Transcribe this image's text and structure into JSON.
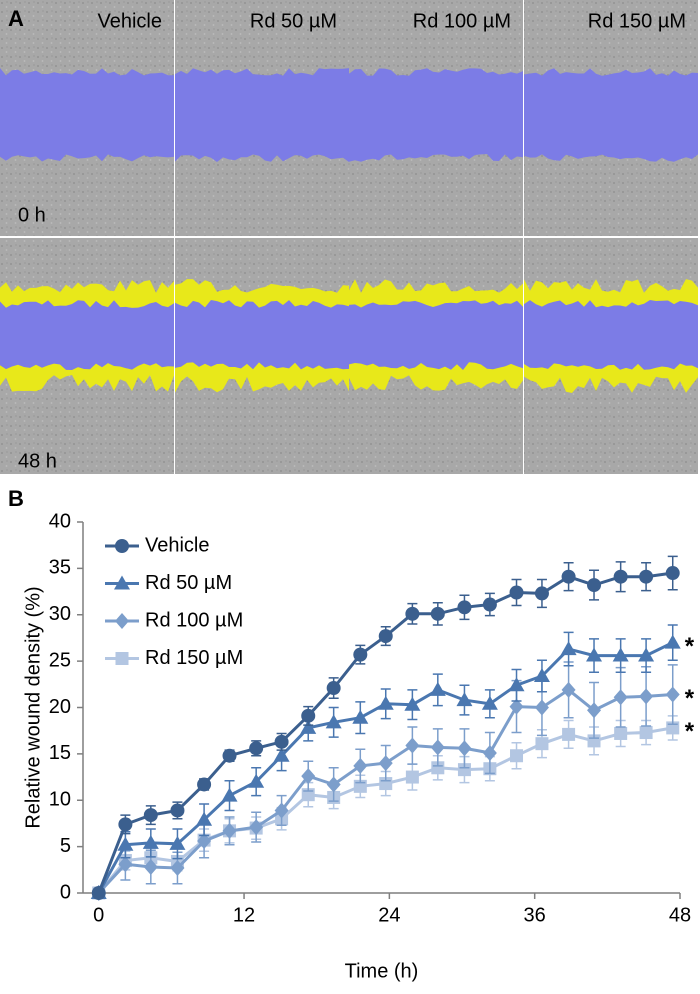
{
  "panel_a": {
    "label": "A",
    "columns": [
      "Vehicle",
      "Rd 50 µM",
      "Rd 100 µM",
      "Rd 150 µM"
    ],
    "rows": [
      "0 h",
      "48 h"
    ]
  },
  "panel_b_label": "B",
  "chart_data": {
    "type": "line",
    "xlabel": "Time (h)",
    "ylabel": "Relative wound density (%)",
    "x": [
      0,
      2.2,
      4.3,
      6.5,
      8.7,
      10.8,
      13,
      15.1,
      17.3,
      19.4,
      21.6,
      23.7,
      25.9,
      28,
      30.2,
      32.3,
      34.5,
      36.6,
      38.8,
      40.9,
      43.1,
      45.2,
      47.4
    ],
    "xlim": [
      -1.3,
      48
    ],
    "xticks": [
      0,
      12,
      24,
      36,
      48
    ],
    "ylim": [
      0,
      40
    ],
    "yticks": [
      0,
      5,
      10,
      15,
      20,
      25,
      30,
      35,
      40
    ],
    "legend": "upper left",
    "series": [
      {
        "name": "Vehicle",
        "color": "#3b5f8e",
        "marker": "circle",
        "values": [
          0,
          7.4,
          8.4,
          8.9,
          11.7,
          14.8,
          15.6,
          16.3,
          19.1,
          22.1,
          25.7,
          27.7,
          30.1,
          30.1,
          30.8,
          31.1,
          32.4,
          32.3,
          34.1,
          33.2,
          34.1,
          34.1,
          34.5
        ],
        "errors": [
          0,
          1,
          1,
          0.9,
          0.6,
          0.6,
          0.8,
          0.9,
          1,
          1.1,
          1,
          1,
          1.1,
          1.2,
          1.3,
          1.2,
          1.4,
          1.5,
          1.5,
          1.6,
          1.6,
          1.5,
          1.8
        ]
      },
      {
        "name": "Rd 50 µM",
        "color": "#4a77b0",
        "marker": "triangle",
        "annotation": "*",
        "values": [
          0,
          5.2,
          5.4,
          5.3,
          7.9,
          10.5,
          12.0,
          14.8,
          17.8,
          18.4,
          18.9,
          20.4,
          20.3,
          21.9,
          20.8,
          20.4,
          22.4,
          23.4,
          26.3,
          25.6,
          25.6,
          25.6,
          27.0
        ],
        "errors": [
          0,
          1.4,
          1.5,
          1.6,
          1.7,
          1.6,
          1.5,
          1.6,
          1.4,
          1.6,
          1.7,
          1.6,
          1.6,
          1.7,
          1.6,
          1.5,
          1.7,
          1.7,
          1.8,
          1.8,
          1.8,
          1.8,
          1.9
        ]
      },
      {
        "name": "Rd 100 µM",
        "color": "#7c9ecb",
        "marker": "diamond",
        "annotation": "*",
        "values": [
          0,
          3.1,
          2.8,
          2.7,
          5.6,
          6.7,
          7.1,
          8.9,
          12.6,
          11.7,
          13.7,
          14.0,
          15.9,
          15.7,
          15.6,
          15.1,
          20.1,
          20.0,
          21.9,
          19.7,
          21.1,
          21.2,
          21.4
        ],
        "errors": [
          0,
          1.7,
          1.8,
          1.7,
          1.8,
          1.5,
          1.6,
          1.6,
          1.6,
          1.8,
          1.8,
          1.9,
          2,
          2,
          2.1,
          2.2,
          2.8,
          3,
          3,
          3,
          3.2,
          3.2,
          3.2
        ]
      },
      {
        "name": "Rd 150 µM",
        "color": "#b3c6e2",
        "marker": "square",
        "annotation": "*",
        "values": [
          0,
          3.5,
          3.8,
          3.4,
          5.7,
          6.7,
          7.0,
          8.0,
          10.6,
          10.3,
          11.5,
          11.8,
          12.5,
          13.5,
          13.3,
          13.4,
          14.8,
          16.1,
          17.1,
          16.4,
          17.2,
          17.3,
          17.8
        ],
        "errors": [
          0,
          1,
          1,
          1,
          1.2,
          1.3,
          1.2,
          1.2,
          1.3,
          1.2,
          1.2,
          1.3,
          1.4,
          1.3,
          1.4,
          1.3,
          1.4,
          1.5,
          1.5,
          1.5,
          1.4,
          1.3,
          1.3
        ]
      }
    ]
  }
}
